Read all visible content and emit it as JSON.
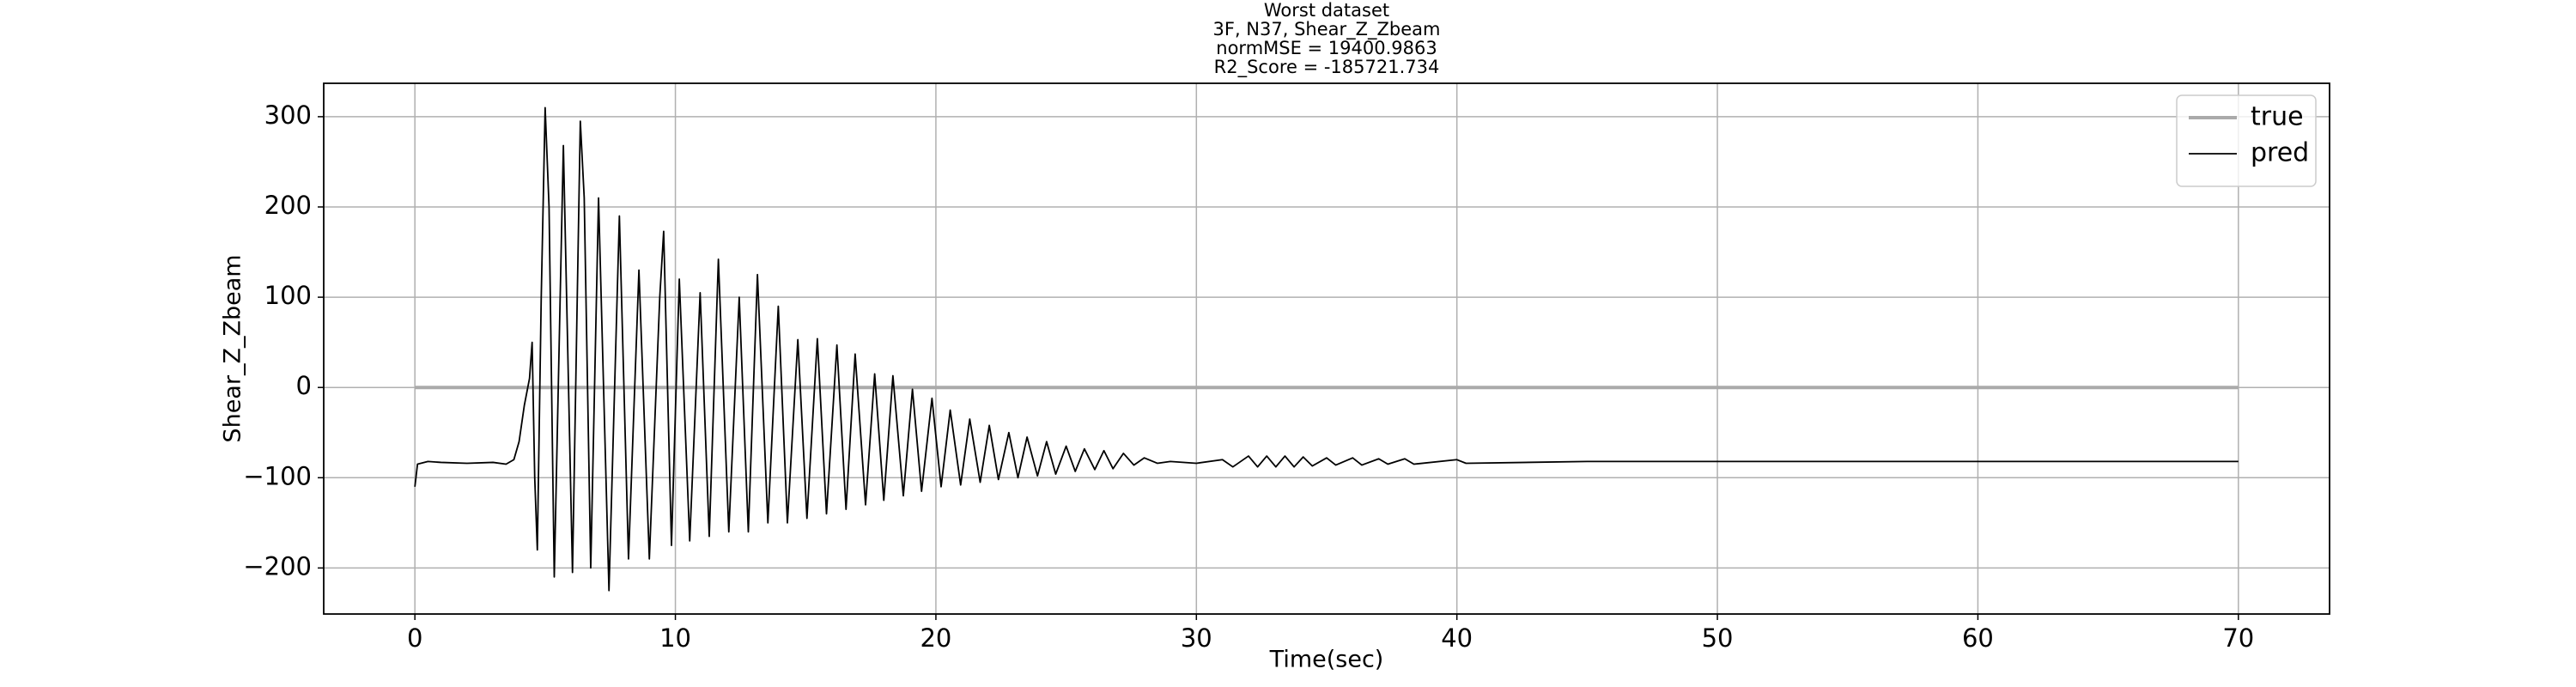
{
  "chart_data": {
    "type": "line",
    "title": [
      "Worst dataset",
      "3F, N37, Shear_Z_Zbeam",
      "normMSE = 19400.9863",
      "R2_Score = -185721.734"
    ],
    "xlabel": "Time(sec)",
    "ylabel": "Shear_Z_Zbeam",
    "xlim": [
      -3.5,
      73.5
    ],
    "ylim": [
      -251,
      337
    ],
    "xticks": [
      0,
      10,
      20,
      30,
      40,
      50,
      60,
      70
    ],
    "yticks": [
      {
        "value": -200,
        "label": "−200"
      },
      {
        "value": -100,
        "label": "−100"
      },
      0,
      100,
      200,
      300
    ],
    "grid": true,
    "legend": "upper right",
    "series": [
      {
        "name": "true",
        "color": "#aaaaaa",
        "x": [
          0,
          70
        ],
        "values": [
          0,
          0
        ]
      },
      {
        "name": "pred",
        "color": "#000000",
        "x": [
          0,
          0.1,
          0.5,
          1,
          2,
          3,
          3.5,
          3.8,
          4.0,
          4.2,
          4.4,
          4.5,
          4.6,
          4.7,
          4.85,
          5.0,
          5.15,
          5.35,
          5.7,
          6.05,
          6.35,
          6.5,
          6.75,
          7.05,
          7.45,
          7.85,
          8.2,
          8.6,
          9.0,
          9.4,
          9.55,
          9.85,
          10.15,
          10.55,
          10.95,
          11.3,
          11.65,
          12.05,
          12.45,
          12.8,
          13.15,
          13.55,
          13.95,
          14.3,
          14.7,
          15.05,
          15.45,
          15.8,
          16.2,
          16.55,
          16.9,
          17.3,
          17.65,
          18.0,
          18.35,
          18.75,
          19.1,
          19.45,
          19.85,
          20.2,
          20.55,
          20.95,
          21.3,
          21.7,
          22.05,
          22.4,
          22.8,
          23.15,
          23.5,
          23.9,
          24.25,
          24.6,
          25.0,
          25.35,
          25.7,
          26.1,
          26.45,
          26.8,
          27.2,
          27.6,
          28.0,
          28.5,
          29,
          30,
          31,
          31.4,
          32,
          32.35,
          32.7,
          33.05,
          33.4,
          33.75,
          34.1,
          34.45,
          35,
          35.35,
          36,
          36.35,
          37,
          37.35,
          38,
          38.35,
          40,
          40.35,
          45,
          50,
          60,
          70
        ],
        "values": [
          -110,
          -85,
          -82,
          -83,
          -84,
          -83,
          -85,
          -80,
          -60,
          -20,
          10,
          50,
          -100,
          -180,
          100,
          310,
          200,
          -210,
          268,
          -205,
          295,
          210,
          -200,
          210,
          -225,
          190,
          -190,
          130,
          -190,
          100,
          173,
          -175,
          120,
          -170,
          105,
          -165,
          142,
          -160,
          100,
          -160,
          125,
          -150,
          90,
          -150,
          53,
          -145,
          54,
          -140,
          47,
          -135,
          37,
          -130,
          15,
          -125,
          13,
          -120,
          -2,
          -115,
          -12,
          -110,
          -25,
          -108,
          -35,
          -105,
          -42,
          -102,
          -50,
          -100,
          -55,
          -98,
          -60,
          -96,
          -65,
          -93,
          -68,
          -91,
          -70,
          -90,
          -73,
          -86,
          -78,
          -84,
          -82,
          -84,
          -80,
          -88,
          -76,
          -88,
          -76,
          -88,
          -76,
          -88,
          -77,
          -87,
          -78,
          -86,
          -78,
          -86,
          -79,
          -85,
          -79,
          -85,
          -80,
          -84,
          -82,
          -82,
          -82,
          -82
        ]
      }
    ]
  }
}
